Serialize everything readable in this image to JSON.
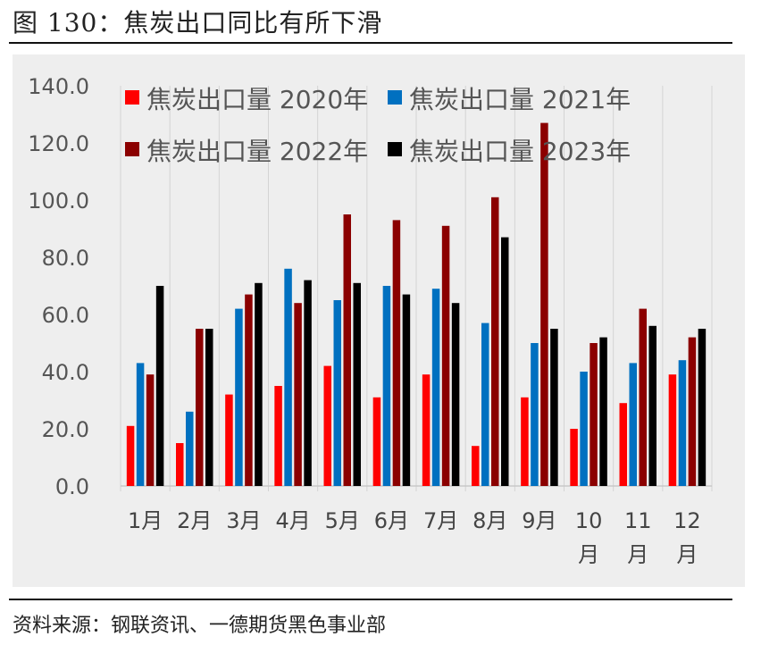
{
  "figure": {
    "title": "图 130：焦炭出口同比有所下滑",
    "source": "资料来源：钢联资讯、一德期货黑色事业部"
  },
  "chart_data": {
    "type": "bar",
    "title": "",
    "xlabel": "",
    "ylabel": "",
    "ylim": [
      0,
      140
    ],
    "yticks": [
      "0.0",
      "20.0",
      "40.0",
      "60.0",
      "80.0",
      "100.0",
      "120.0",
      "140.0"
    ],
    "grid": "vertical",
    "legend_position": "top-left",
    "categories": [
      "1月",
      "2月",
      "3月",
      "4月",
      "5月",
      "6月",
      "7月",
      "8月",
      "9月",
      "10月",
      "11月",
      "12月"
    ],
    "series": [
      {
        "name": "焦炭出口量 2020年",
        "color": "#ff0000",
        "values": [
          21,
          15,
          32,
          35,
          42,
          31,
          39,
          14,
          31,
          20,
          29,
          39
        ]
      },
      {
        "name": "焦炭出口量 2021年",
        "color": "#0070c0",
        "values": [
          43,
          26,
          62,
          76,
          65,
          70,
          69,
          57,
          50,
          40,
          43,
          44
        ]
      },
      {
        "name": "焦炭出口量 2022年",
        "color": "#8b0000",
        "values": [
          39,
          55,
          67,
          64,
          95,
          93,
          91,
          101,
          127,
          50,
          62,
          52
        ]
      },
      {
        "name": "焦炭出口量 2023年",
        "color": "#000000",
        "values": [
          70,
          55,
          71,
          72,
          71,
          67,
          64,
          87,
          55,
          52,
          56,
          55
        ]
      }
    ]
  }
}
